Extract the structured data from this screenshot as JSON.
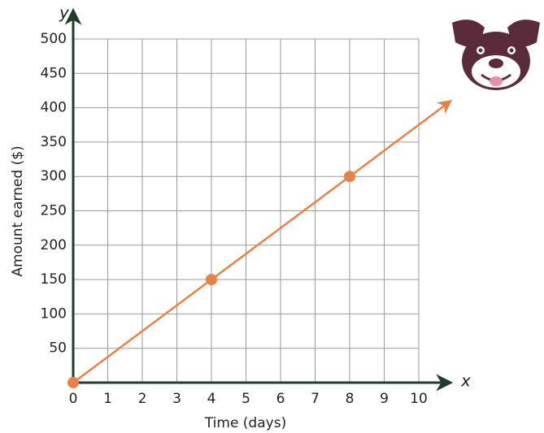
{
  "chart_data": {
    "type": "line",
    "x_label": "Time (days)",
    "y_label": "Amount earned ($)",
    "x_axis_name": "x",
    "y_axis_name": "y",
    "xlim": [
      0,
      10
    ],
    "ylim": [
      0,
      500
    ],
    "xticks": [
      0,
      1,
      2,
      3,
      4,
      5,
      6,
      7,
      8,
      9,
      10
    ],
    "yticks": [
      50,
      100,
      150,
      200,
      250,
      300,
      350,
      400,
      450,
      500
    ],
    "grid": true,
    "series": [
      {
        "color": "#e8804a",
        "x": [
          0,
          4,
          8,
          10.9
        ],
        "values": [
          0,
          150,
          300,
          409
        ]
      }
    ],
    "points": {
      "color": "#e8804a",
      "x": [
        0,
        4,
        8
      ],
      "values": [
        0,
        150,
        300
      ]
    }
  }
}
